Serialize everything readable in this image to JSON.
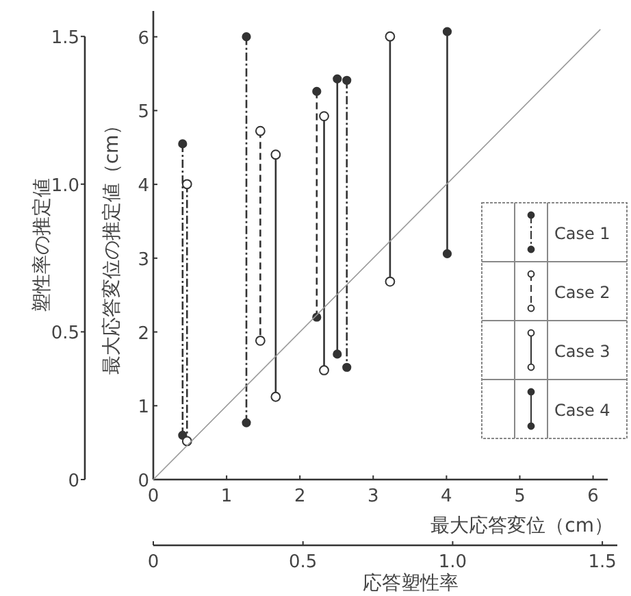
{
  "chart_data": {
    "type": "line",
    "xlabel": "最大応答変位（cm）",
    "ylabel": "最大応答変位の推定値（cm）",
    "y2label": "塑性率の推定値",
    "x2label": "応答塑性率",
    "xlim": [
      0,
      6.2
    ],
    "xticks": [
      0,
      1,
      2,
      3,
      4,
      5,
      6
    ],
    "ylim": [
      0,
      6.35
    ],
    "yticks": [
      0,
      1,
      2,
      3,
      4,
      5,
      6
    ],
    "x2lim": [
      0,
      1.55
    ],
    "x2ticks": [
      0,
      {
        "value": 0.5,
        "label": "0.5"
      },
      {
        "value": 1,
        "label": "1.0"
      },
      {
        "value": 1.5,
        "label": "1.5"
      }
    ],
    "y2lim": [
      0,
      1.5
    ],
    "y2ticks": [
      0,
      {
        "value": 0.5,
        "label": "0.5"
      },
      {
        "value": 1,
        "label": "1.0"
      },
      {
        "value": 1.5,
        "label": "1.5"
      }
    ],
    "legend": "right",
    "marker": "circle",
    "grid": false,
    "series": [
      {
        "name": "Case 1",
        "color": "#333333",
        "line_style": "dotted",
        "x": [
          0.4,
          0.4
        ],
        "values": [
          4.55,
          0.6
        ]
      },
      {
        "color": "#333333",
        "line_style": "dotted",
        "axis": "y2",
        "x": [
          0.46,
          0.46
        ],
        "values": [
          1.0,
          0.13
        ]
      },
      {
        "color": "#333333",
        "line_style": "dotted",
        "x": [
          1.27,
          1.27
        ],
        "values": [
          6.0,
          0.77
        ]
      },
      {
        "color": "#333333",
        "line_style": "dotted",
        "x": [
          2.64,
          2.64
        ],
        "values": [
          5.41,
          1.52
        ]
      },
      {
        "name": "Case 2",
        "color": "#333333",
        "line_style": "dashed",
        "axis": "y2",
        "x": [
          1.46,
          1.46
        ],
        "values": [
          1.18,
          0.47
        ]
      },
      {
        "color": "#333333",
        "line_style": "dashed",
        "x": [
          2.23,
          2.23
        ],
        "values": [
          5.26,
          2.2
        ]
      },
      {
        "name": "Case 3",
        "color": "#333333",
        "line_style": "solid",
        "axis": "y2",
        "x": [
          1.67,
          1.67
        ],
        "values": [
          1.1,
          0.28
        ]
      },
      {
        "color": "#333333",
        "line_style": "solid",
        "axis": "y2",
        "x": [
          2.33,
          2.33
        ],
        "values": [
          1.23,
          0.37
        ]
      },
      {
        "color": "#333333",
        "line_style": "solid",
        "axis": "y2",
        "x": [
          3.23,
          3.23
        ],
        "values": [
          1.5,
          0.67
        ]
      },
      {
        "name": "Case 4",
        "color": "#333333",
        "line_style": "solid",
        "x": [
          2.51,
          2.51
        ],
        "values": [
          5.43,
          1.7
        ]
      },
      {
        "color": "#333333",
        "line_style": "solid",
        "x": [
          4.01,
          4.01
        ],
        "values": [
          6.07,
          3.06
        ]
      },
      {
        "type": "line",
        "color": "#999999",
        "line_style": "solid",
        "marker": "none",
        "x": [
          0,
          6.1
        ],
        "values": [
          0,
          6.1
        ]
      }
    ]
  }
}
